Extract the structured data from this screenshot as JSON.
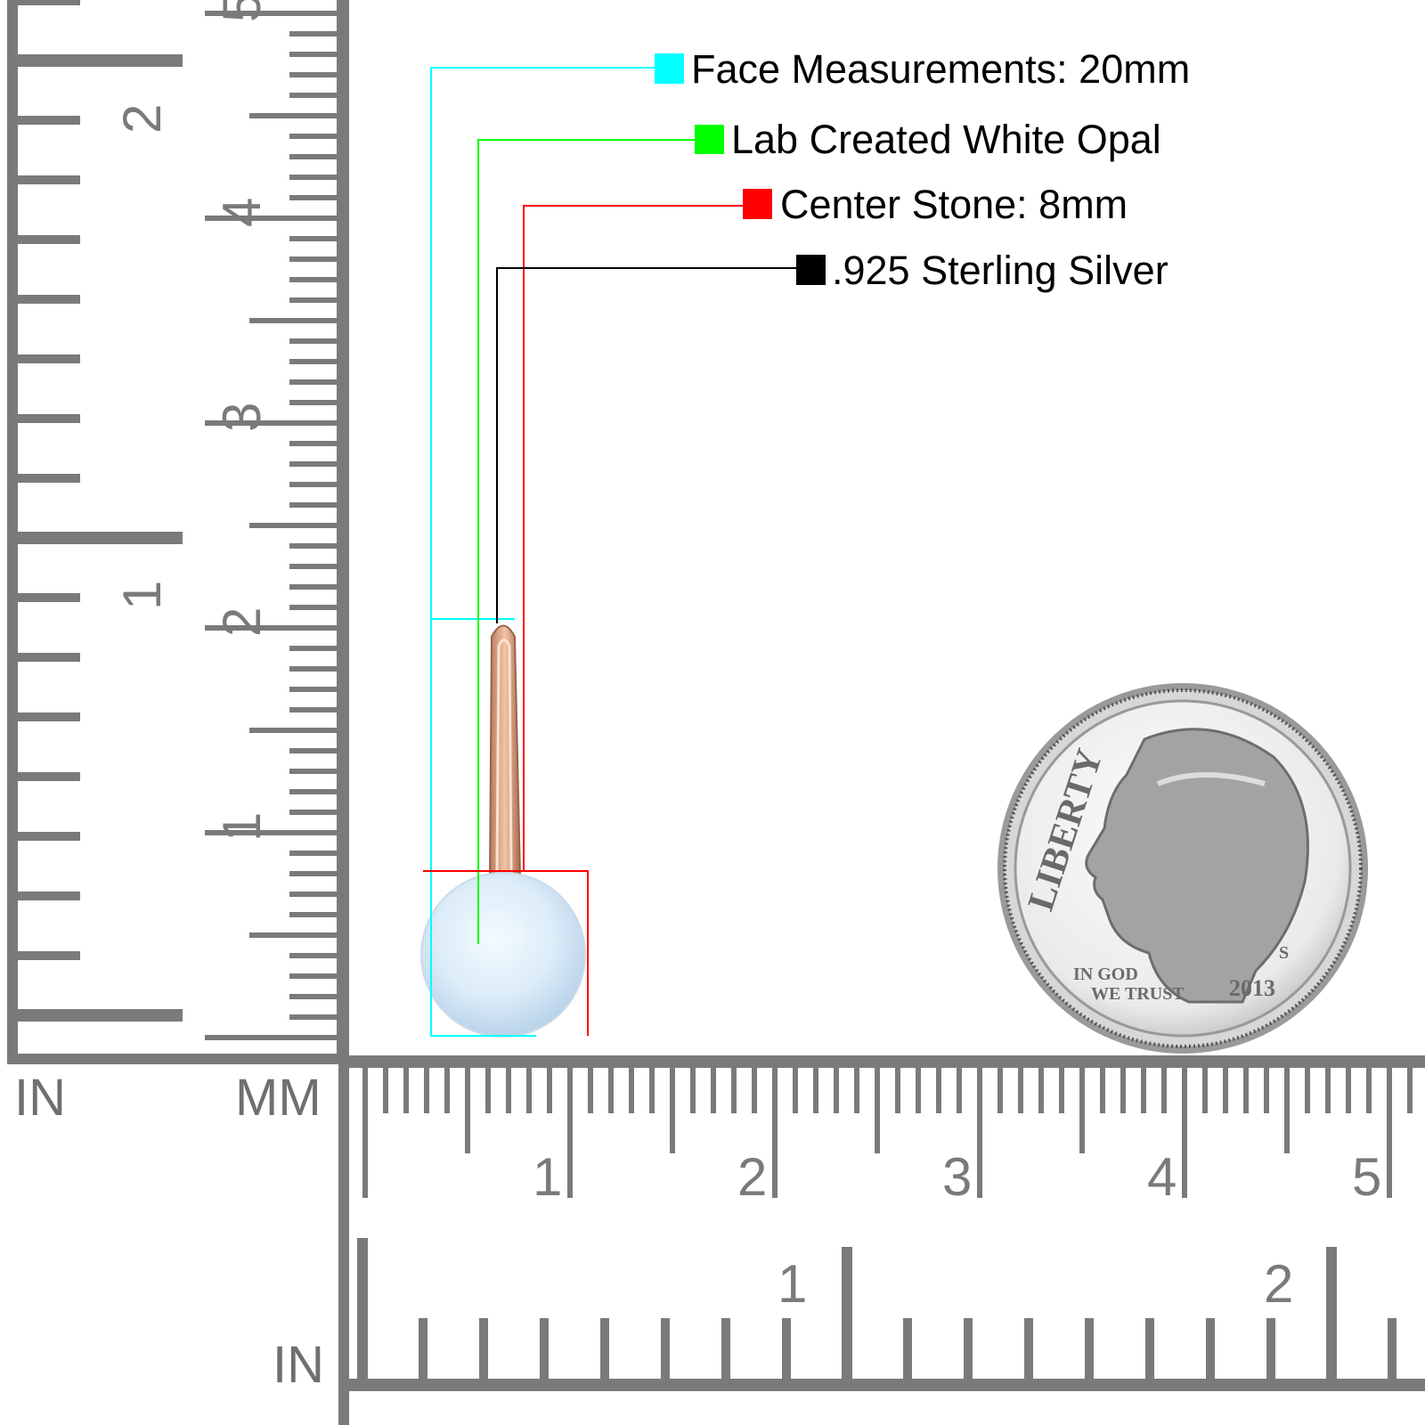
{
  "callouts": [
    {
      "label": "Face Measurements: 20mm",
      "color": "#00ffff"
    },
    {
      "label": "Lab Created White Opal",
      "color": "#00ff00"
    },
    {
      "label": "Center Stone: 8mm",
      "color": "#ff0000"
    },
    {
      "label": ".925 Sterling Silver",
      "color": "#000000"
    }
  ],
  "rulers": {
    "vertical_inch_unit": "IN",
    "vertical_mm_unit": "MM",
    "horizontal_inch_unit": "IN",
    "vertical_cm_numbers": [
      "1",
      "2",
      "3",
      "4",
      "5"
    ],
    "vertical_inch_numbers": [
      "1",
      "2"
    ],
    "horizontal_cm_numbers": [
      "1",
      "2",
      "3",
      "4",
      "5"
    ],
    "horizontal_inch_numbers": [
      "1",
      "2"
    ],
    "color": "#7a7a7a"
  },
  "product": {
    "stone_color": "#e4f2fa",
    "metal_color": "#e0a88a"
  },
  "coin": {
    "top_text": "LIBERTY",
    "motto_line1": "IN GOD",
    "motto_line2": "WE TRUST",
    "year": "2013",
    "mint_mark": "S"
  }
}
